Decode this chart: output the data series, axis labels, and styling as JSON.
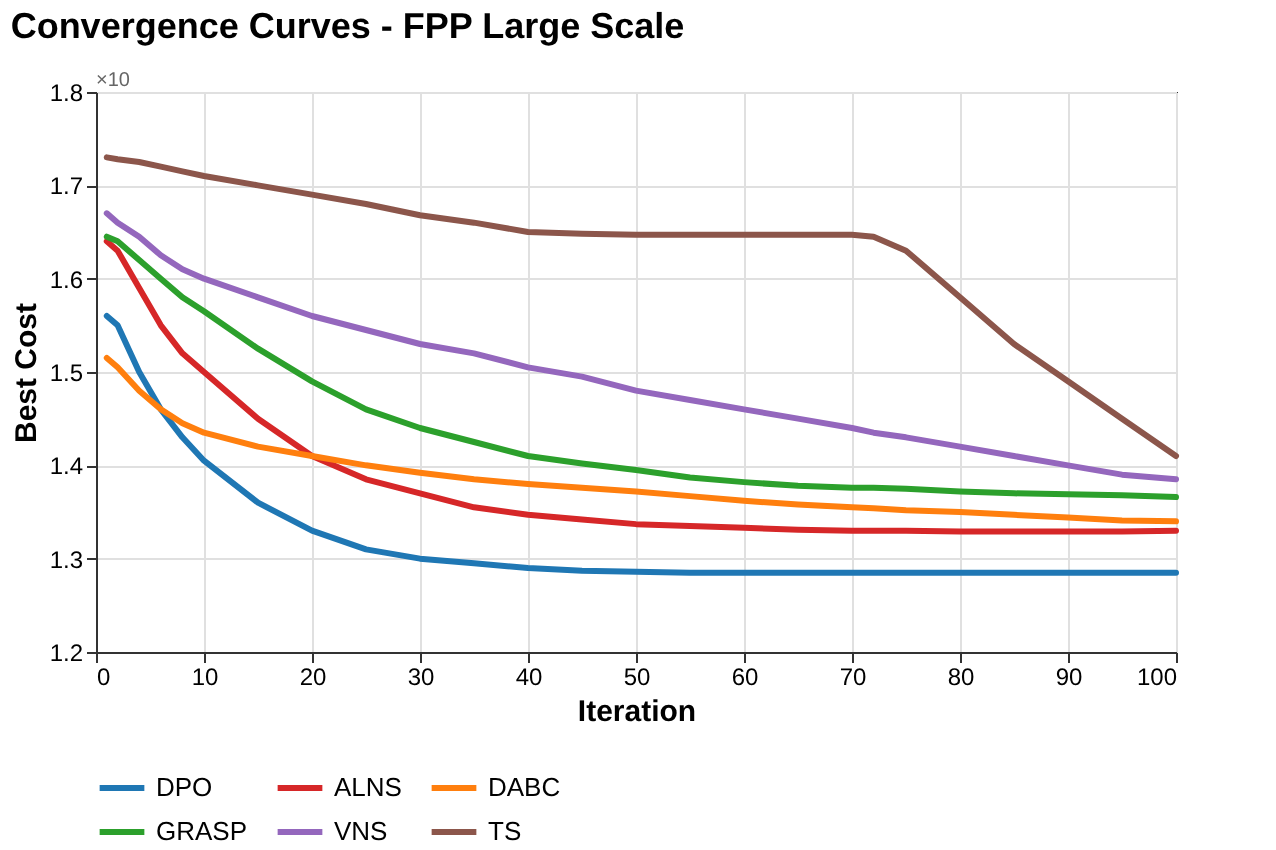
{
  "chart_data": {
    "type": "line",
    "title": "Convergence Curves - FPP Large Scale",
    "xlabel": "Iteration",
    "ylabel": "Best Cost",
    "annotations": [
      "×10"
    ],
    "x": [
      1,
      2,
      4,
      6,
      8,
      10,
      15,
      20,
      25,
      30,
      35,
      40,
      45,
      50,
      55,
      60,
      65,
      70,
      72,
      75,
      80,
      85,
      90,
      95,
      100
    ],
    "series": [
      {
        "name": "DPO",
        "color": "#1f77b4",
        "values": [
          1.56,
          1.55,
          1.5,
          1.46,
          1.43,
          1.405,
          1.36,
          1.33,
          1.31,
          1.3,
          1.295,
          1.29,
          1.287,
          1.286,
          1.285,
          1.285,
          1.285,
          1.285,
          1.285,
          1.285,
          1.285,
          1.285,
          1.285,
          1.285,
          1.285
        ]
      },
      {
        "name": "ALNS",
        "color": "#d62728",
        "values": [
          1.64,
          1.63,
          1.59,
          1.55,
          1.52,
          1.5,
          1.45,
          1.41,
          1.385,
          1.37,
          1.355,
          1.347,
          1.342,
          1.337,
          1.335,
          1.333,
          1.331,
          1.33,
          1.33,
          1.33,
          1.329,
          1.329,
          1.329,
          1.329,
          1.33
        ]
      },
      {
        "name": "DABC",
        "color": "#ff7f0e",
        "values": [
          1.515,
          1.505,
          1.48,
          1.46,
          1.445,
          1.435,
          1.42,
          1.41,
          1.4,
          1.392,
          1.385,
          1.38,
          1.376,
          1.372,
          1.367,
          1.362,
          1.358,
          1.355,
          1.354,
          1.352,
          1.35,
          1.347,
          1.344,
          1.341,
          1.34
        ]
      },
      {
        "name": "GRASP",
        "color": "#2ca02c",
        "values": [
          1.645,
          1.64,
          1.62,
          1.6,
          1.58,
          1.565,
          1.525,
          1.49,
          1.46,
          1.44,
          1.425,
          1.41,
          1.402,
          1.395,
          1.387,
          1.382,
          1.378,
          1.376,
          1.376,
          1.375,
          1.372,
          1.37,
          1.369,
          1.368,
          1.366
        ]
      },
      {
        "name": "VNS",
        "color": "#9467bd",
        "values": [
          1.67,
          1.66,
          1.645,
          1.625,
          1.61,
          1.6,
          1.58,
          1.56,
          1.545,
          1.53,
          1.52,
          1.505,
          1.495,
          1.48,
          1.47,
          1.46,
          1.45,
          1.44,
          1.435,
          1.43,
          1.42,
          1.41,
          1.4,
          1.39,
          1.385
        ]
      },
      {
        "name": "TS",
        "color": "#8c564b",
        "values": [
          1.73,
          1.728,
          1.725,
          1.72,
          1.715,
          1.71,
          1.7,
          1.69,
          1.68,
          1.668,
          1.66,
          1.65,
          1.648,
          1.647,
          1.647,
          1.647,
          1.647,
          1.647,
          1.645,
          1.63,
          1.58,
          1.53,
          1.49,
          1.45,
          1.41
        ]
      }
    ],
    "xlim": [
      0,
      100
    ],
    "xticks": [
      0,
      10,
      20,
      30,
      40,
      50,
      60,
      70,
      80,
      90,
      100
    ],
    "ylim": [
      1.2,
      1.8
    ],
    "yticks": [
      1.2,
      1.3,
      1.4,
      1.5,
      1.6,
      1.7,
      1.8
    ],
    "grid": true,
    "legend": "bottom",
    "marker": "none",
    "line_style": "solid"
  }
}
